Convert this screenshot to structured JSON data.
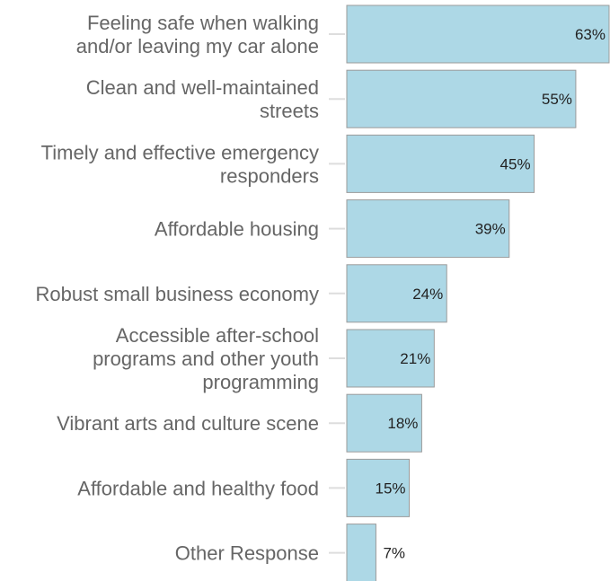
{
  "chart_data": {
    "type": "bar",
    "orientation": "horizontal",
    "categories": [
      [
        "Feeling safe when walking",
        "and/or leaving my car alone"
      ],
      [
        "Clean and well-maintained",
        "streets"
      ],
      [
        "Timely and effective emergency",
        "responders"
      ],
      [
        "Affordable housing"
      ],
      [
        "Robust small business economy"
      ],
      [
        "Accessible after-school",
        "programs and other youth",
        "programming"
      ],
      [
        "Vibrant arts and culture scene"
      ],
      [
        "Affordable and healthy food"
      ],
      [
        "Other Response"
      ]
    ],
    "values": [
      63,
      55,
      45,
      39,
      24,
      21,
      18,
      15,
      7
    ],
    "value_labels": [
      "63%",
      "55%",
      "45%",
      "39%",
      "24%",
      "21%",
      "18%",
      "15%",
      "7%"
    ],
    "xlim": [
      0,
      63
    ],
    "bar_color": "#add8e6",
    "bar_border_color": "#9b9b9b",
    "label_color": "#666666",
    "value_label_color": "#222222",
    "title": "",
    "xlabel": "",
    "ylabel": "",
    "grid": false,
    "legend": "none"
  }
}
